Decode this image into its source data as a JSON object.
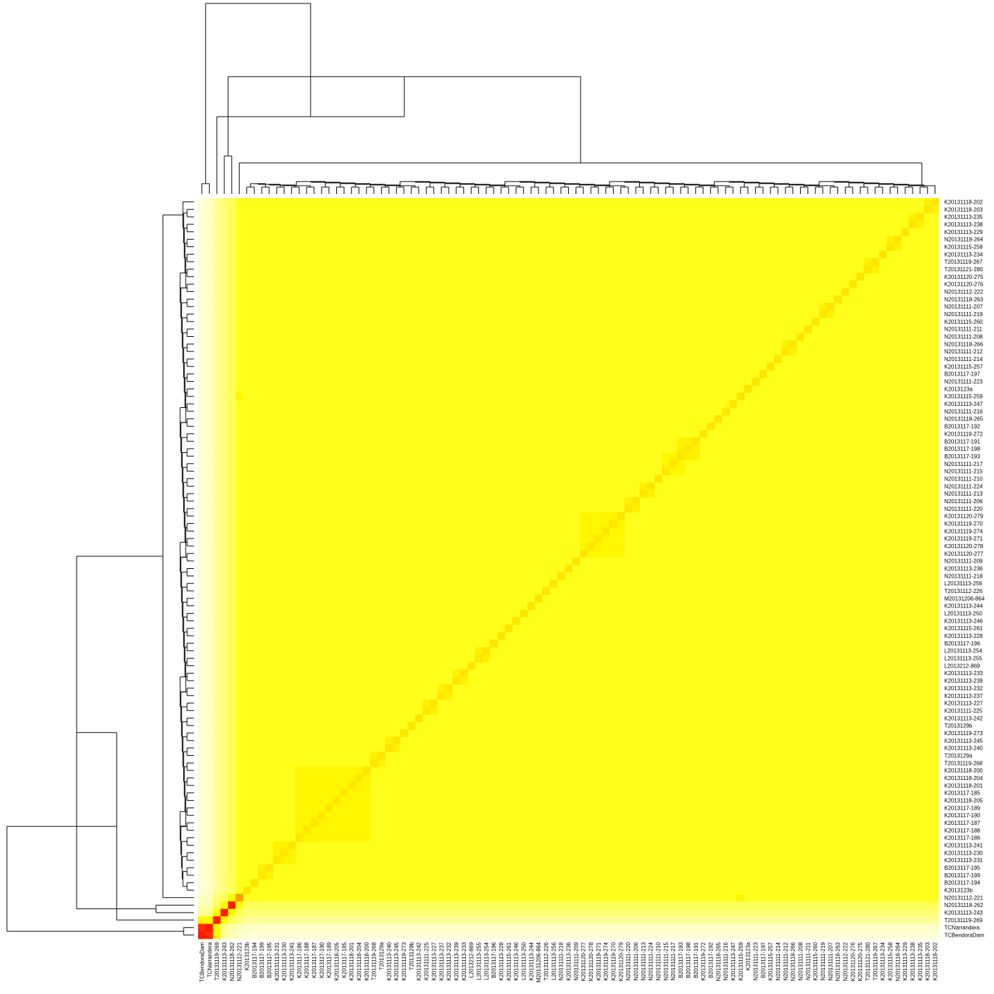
{
  "chart_data": {
    "type": "heatmap",
    "title": "",
    "xlabel": "",
    "ylabel": "",
    "labels": [
      "TCBendoraDam",
      "TCNarrandera",
      "T20131119-269",
      "K20131113-243",
      "N20131118-262",
      "N20131112-221",
      "K2013123b",
      "B2013117-194",
      "B2013117-199",
      "B2013117-195",
      "K20131113-231",
      "K20131113-230",
      "K20131113-241",
      "K2013117-186",
      "K2013117-188",
      "K2013117-187",
      "K2013117-190",
      "K2013117-189",
      "K20131118-205",
      "K2013117-185",
      "K20131118-201",
      "K20131118-204",
      "K20131118-200",
      "T20131119-268",
      "T2013129a",
      "K20131113-240",
      "K20131113-245",
      "K20131119-273",
      "T2013129b",
      "K20131113-242",
      "K20131111-225",
      "K20131113-227",
      "K20131113-237",
      "K20131113-232",
      "K20131113-239",
      "K20131113-233",
      "L2013212-869",
      "L20131113-255",
      "L20131113-254",
      "B2013117-196",
      "K20131113-228",
      "K20131115-261",
      "K20131113-246",
      "L20131113-250",
      "K20131113-244",
      "M20131206-864",
      "T20131112-226",
      "L20131113-256",
      "N20131111-218",
      "K20131113-236",
      "N20131111-209",
      "K20131120-277",
      "K20131120-278",
      "K20131119-271",
      "K20131119-274",
      "K20131119-270",
      "K20131120-279",
      "N20131111-220",
      "N20131111-206",
      "N20131111-213",
      "N20131111-224",
      "N20131111-210",
      "N20131111-215",
      "N20131111-217",
      "B2013117-193",
      "B2013117-198",
      "B2013117-191",
      "K20131119-272",
      "B2013117-192",
      "N20131118-265",
      "N20131111-216",
      "K20131113-247",
      "K20131115-259",
      "K2013123a",
      "N20131111-223",
      "B2013117-197",
      "K20131115-257",
      "N20131111-214",
      "N20131111-212",
      "N20131118-266",
      "N20131111-208",
      "N20131111-211",
      "K20131115-260",
      "N20131111-219",
      "N20131111-207",
      "N20131118-263",
      "N20131112-222",
      "K20131120-276",
      "K20131120-275",
      "T20131121-280",
      "T20131119-267",
      "K20131113-234",
      "K20131115-258",
      "N20131118-264",
      "K20131113-229",
      "K20131113-238",
      "K20131113-235",
      "K20131118-203",
      "K20131118-202"
    ],
    "value_range": [
      0,
      1
    ],
    "color_scale": [
      "#ff0000",
      "#ff8c00",
      "#ffdf00",
      "#ffff00",
      "#ffffe0"
    ],
    "diagonal_value": 0.55,
    "background_value": 0.78,
    "outgroup_columns": [
      {
        "label": "TCBendoraDam",
        "value": 0.99
      },
      {
        "label": "TCNarrandera",
        "value": 0.97
      },
      {
        "label": "T20131119-269",
        "value": 0.92
      },
      {
        "label": "K20131113-243",
        "value": 0.88
      },
      {
        "label": "N20131118-262",
        "value": 0.85
      }
    ],
    "outgroup_block": [
      [
        0.05,
        0.08,
        0.68,
        0.92,
        0.95,
        0.97
      ],
      [
        0.08,
        0.05,
        0.68,
        0.9,
        0.94,
        0.96
      ],
      [
        0.68,
        0.68,
        0.05,
        0.7,
        0.85,
        0.88
      ],
      [
        0.92,
        0.9,
        0.7,
        0.05,
        0.7,
        0.85
      ],
      [
        0.95,
        0.94,
        0.85,
        0.7,
        0.05,
        0.75
      ],
      [
        0.97,
        0.96,
        0.88,
        0.85,
        0.75,
        0.3
      ]
    ],
    "clusters": [
      {
        "members": [
          "K20131118-203",
          "K20131118-202"
        ],
        "value": 0.65
      },
      {
        "members": [
          "K20131113-238",
          "K20131113-235"
        ],
        "value": 0.65
      },
      {
        "members": [
          "K20131115-258",
          "N20131118-264"
        ],
        "value": 0.65
      },
      {
        "members": [
          "T20131121-280",
          "T20131119-267"
        ],
        "value": 0.65
      },
      {
        "members": [
          "N20131111-219",
          "N20131111-207"
        ],
        "value": 0.65
      },
      {
        "members": [
          "N20131118-266",
          "N20131111-212"
        ],
        "value": 0.65
      },
      {
        "members": [
          "B2013117-193",
          "B2013117-198",
          "B2013117-191"
        ],
        "value": 0.65
      },
      {
        "members": [
          "N20131111-215",
          "N20131111-217",
          "B2013117-193"
        ],
        "value": 0.68
      },
      {
        "members": [
          "N20131111-224",
          "N20131111-213"
        ],
        "value": 0.65
      },
      {
        "members": [
          "N20131111-220",
          "N20131111-206"
        ],
        "value": 0.65
      },
      {
        "members": [
          "K20131120-277",
          "K20131120-278",
          "K20131119-271",
          "K20131119-274",
          "K20131119-270",
          "K20131120-279"
        ],
        "value": 0.68
      },
      {
        "members": [
          "L20131113-255",
          "L20131113-254"
        ],
        "value": 0.65
      },
      {
        "members": [
          "K20131113-239",
          "K20131113-233"
        ],
        "value": 0.65
      },
      {
        "members": [
          "K20131113-237",
          "K20131113-232"
        ],
        "value": 0.65
      },
      {
        "members": [
          "K20131111-225",
          "K20131113-227"
        ],
        "value": 0.65
      },
      {
        "members": [
          "K20131113-240",
          "K20131113-245"
        ],
        "value": 0.65
      },
      {
        "members": [
          "T20131119-268",
          "T2013129a"
        ],
        "value": 0.65
      },
      {
        "members": [
          "K2013117-186",
          "K2013117-188",
          "K2013117-187",
          "K2013117-190",
          "K2013117-189",
          "K20131118-205",
          "K2013117-185",
          "K20131118-201",
          "K20131118-204",
          "K20131118-200"
        ],
        "value": 0.68
      },
      {
        "members": [
          "K20131113-231",
          "K20131113-230",
          "K20131113-241"
        ],
        "value": 0.66
      },
      {
        "members": [
          "B2013117-199",
          "B2013117-195"
        ],
        "value": 0.65
      }
    ],
    "extra_cells": [
      {
        "row": "N20131112-221",
        "col": "K20131115-259",
        "value": 0.68
      }
    ]
  }
}
